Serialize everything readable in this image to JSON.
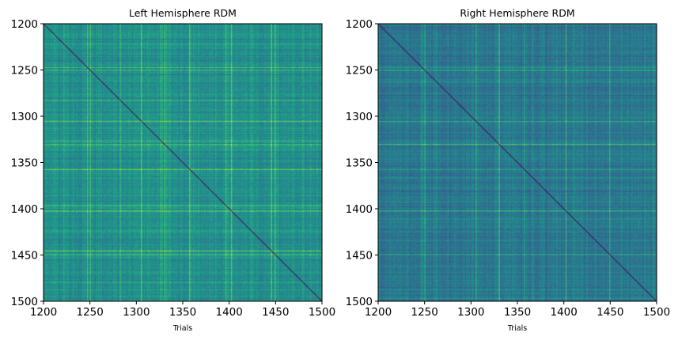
{
  "chart_data": [
    {
      "type": "heatmap",
      "title": "Left Hemisphere RDM",
      "xlabel": "Trials",
      "ylabel": "",
      "xlim": [
        1200,
        1500
      ],
      "ylim": [
        1500,
        1200
      ],
      "xticks": [
        "1200",
        "1250",
        "1300",
        "1350",
        "1400",
        "1450",
        "1500"
      ],
      "yticks": [
        "1200",
        "1250",
        "1300",
        "1350",
        "1400",
        "1450",
        "1500"
      ],
      "colormap": "viridis",
      "diagonal": "minimum",
      "typical_level": 0.5,
      "bright_trials": [
        1247,
        1250,
        1282,
        1305,
        1326,
        1330,
        1357,
        1396,
        1402,
        1445,
        1449
      ]
    },
    {
      "type": "heatmap",
      "title": "Right Hemisphere RDM",
      "xlabel": "Trials",
      "ylabel": "",
      "xlim": [
        1200,
        1500
      ],
      "ylim": [
        1500,
        1200
      ],
      "xticks": [
        "1200",
        "1250",
        "1300",
        "1350",
        "1400",
        "1450",
        "1500"
      ],
      "yticks": [
        "1200",
        "1250",
        "1300",
        "1350",
        "1400",
        "1450",
        "1500"
      ],
      "colormap": "viridis",
      "diagonal": "minimum",
      "typical_level": 0.4,
      "bright_trials": [
        1247,
        1250,
        1305,
        1330,
        1357,
        1402,
        1449
      ]
    }
  ]
}
